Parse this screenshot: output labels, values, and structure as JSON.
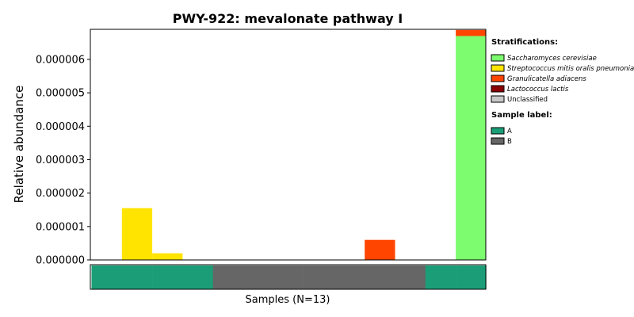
{
  "chart_data": {
    "type": "bar",
    "stacked": true,
    "title": "PWY-922: mevalonate pathway I",
    "ylabel": "Relative abundance",
    "xlabel": "Samples (N=13)",
    "ylim": [
      0,
      6.9e-06
    ],
    "yticks": [
      "0.000000",
      "0.000001",
      "0.000002",
      "0.000003",
      "0.000004",
      "0.000005",
      "0.000006"
    ],
    "ytick_values": [
      0,
      1e-06,
      2e-06,
      3e-06,
      4e-06,
      5e-06,
      6e-06
    ],
    "n_samples": 13,
    "series": [
      {
        "name": "Saccharomyces cerevisiae",
        "color": "#7cfc6e",
        "italic": true,
        "values": [
          0,
          0,
          0,
          0,
          0,
          0,
          0,
          0,
          0,
          0,
          0,
          0,
          6.7e-06
        ]
      },
      {
        "name": "Streptococcus mitis oralis pneumoniae",
        "color": "#ffe400",
        "italic": true,
        "values": [
          0,
          1.55e-06,
          2e-07,
          0,
          0,
          0,
          0,
          0,
          0,
          0,
          0,
          0,
          0
        ]
      },
      {
        "name": "Granulicatella adiacens",
        "color": "#ff4500",
        "italic": true,
        "values": [
          0,
          0,
          0,
          0,
          0,
          0,
          0,
          0,
          0,
          6e-07,
          0,
          0,
          1.8e-07
        ]
      },
      {
        "name": "Lactococcus lactis",
        "color": "#8b0000",
        "italic": true,
        "values": [
          0,
          0,
          0,
          0,
          0,
          0,
          0,
          0,
          0,
          0,
          0,
          0,
          0
        ]
      },
      {
        "name": "Unclassified",
        "color": "#c8c8c8",
        "italic": false,
        "values": [
          0,
          0,
          0,
          0,
          0,
          0,
          0,
          0,
          0,
          0,
          0,
          0,
          0
        ]
      }
    ],
    "stratifications_heading": "Stratifications:",
    "sample_label_heading": "Sample label:",
    "sample_labels": [
      {
        "name": "A",
        "color": "#1b9e77"
      },
      {
        "name": "B",
        "color": "#666666"
      }
    ],
    "sample_assignments": [
      "A",
      "A",
      "A",
      "A",
      "B",
      "B",
      "B",
      "B",
      "B",
      "B",
      "B",
      "A",
      "A"
    ]
  }
}
